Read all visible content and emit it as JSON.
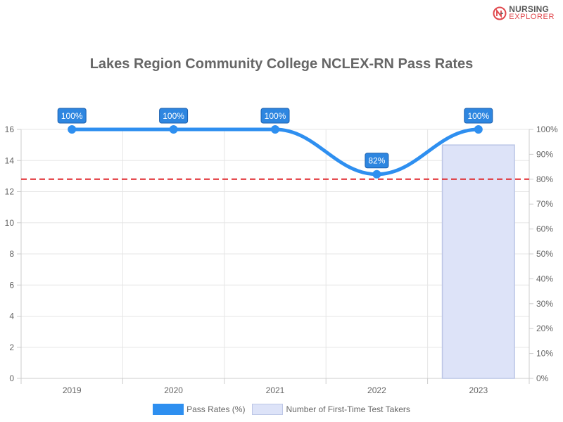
{
  "brand": {
    "line1": "NURSING",
    "line2": "EXPLORER",
    "icon": "nursing-explorer-logo-icon",
    "colors": {
      "text": "#5a5a5a",
      "accent": "#e0464b"
    }
  },
  "chart_data": {
    "type": "bar",
    "title": "Lakes Region Community College NCLEX-RN Pass Rates",
    "categories": [
      "2019",
      "2020",
      "2021",
      "2022",
      "2023"
    ],
    "series": [
      {
        "name": "Pass Rates (%)",
        "type": "line",
        "axis": "right",
        "values": [
          100,
          100,
          100,
          82,
          100
        ],
        "labels": [
          "100%",
          "100%",
          "100%",
          "82%",
          "100%"
        ],
        "color": "#2e8ff0"
      },
      {
        "name": "Number of First-Time Test Takers",
        "type": "bar",
        "axis": "left",
        "values": [
          null,
          null,
          null,
          null,
          15
        ],
        "color": "#dde3f8",
        "border": "#bcc6e6"
      }
    ],
    "y_left": {
      "ylim": [
        0,
        16
      ],
      "ticks": [
        "0",
        "2",
        "4",
        "6",
        "8",
        "10",
        "12",
        "14",
        "16"
      ]
    },
    "y_right": {
      "ylim": [
        0,
        100
      ],
      "ticks": [
        "0%",
        "10%",
        "20%",
        "30%",
        "40%",
        "50%",
        "60%",
        "70%",
        "80%",
        "90%",
        "100%"
      ]
    },
    "reference_line": {
      "value": 80,
      "axis": "right",
      "style": "dashed",
      "color": "#e0262b"
    },
    "grid": true,
    "legend_position": "bottom"
  }
}
